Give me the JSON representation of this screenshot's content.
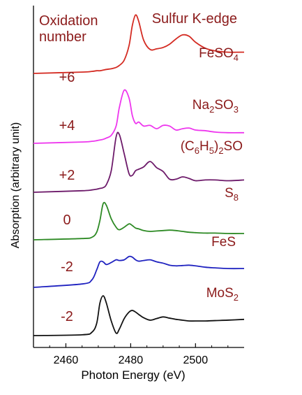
{
  "chart_data": {
    "type": "line",
    "title": "Sulfur K-edge",
    "xlabel": "Photon Energy (eV)",
    "ylabel": "Absorption (arbitrary unit)",
    "xlim": [
      2450,
      2515
    ],
    "x_ticks": [
      2460,
      2480,
      2500
    ],
    "oxidation_header": [
      "Oxidation",
      "number"
    ],
    "y_ticks": "none",
    "grid": false,
    "legend": "inline labels at right of each trace",
    "x_values": [
      2450,
      2465,
      2468,
      2469.5,
      2470.5,
      2471.5,
      2472.5,
      2474,
      2475.5,
      2476.5,
      2478,
      2479.5,
      2480.5,
      2481.5,
      2482.5,
      2484,
      2486,
      2488,
      2490,
      2492,
      2494,
      2496,
      2498,
      2500,
      2503,
      2506,
      2510,
      2515
    ],
    "series": [
      {
        "name": "FeSO4",
        "name_base": "FeSO",
        "name_sub": "4",
        "oxidation": "+6",
        "color": "#d42b22",
        "values": [
          0.0,
          0.02,
          0.03,
          0.04,
          0.04,
          0.05,
          0.06,
          0.07,
          0.09,
          0.12,
          0.2,
          0.42,
          0.72,
          0.88,
          0.78,
          0.5,
          0.36,
          0.37,
          0.39,
          0.44,
          0.52,
          0.58,
          0.56,
          0.47,
          0.38,
          0.34,
          0.32,
          0.32
        ]
      },
      {
        "name": "Na2SO3",
        "name_base": "Na",
        "name_sub": "2",
        "name_mid": "SO",
        "name_sub2": "3",
        "oxidation": "+4",
        "color": "#ee36ee",
        "values": [
          0.0,
          0.02,
          0.03,
          0.04,
          0.05,
          0.06,
          0.08,
          0.12,
          0.26,
          0.54,
          0.8,
          0.68,
          0.42,
          0.3,
          0.32,
          0.26,
          0.27,
          0.22,
          0.27,
          0.26,
          0.2,
          0.22,
          0.23,
          0.2,
          0.19,
          0.17,
          0.16,
          0.16
        ]
      },
      {
        "name": "(C6H5)2SO",
        "name_base": "(C",
        "name_sub": "6",
        "name_mid": "H",
        "name_sub2": "5",
        "name_tail": ")",
        "name_sub3": "2",
        "name_end": "SO",
        "oxidation": "+2",
        "color": "#6d1a6a",
        "values": [
          0.0,
          0.02,
          0.03,
          0.04,
          0.05,
          0.06,
          0.1,
          0.28,
          0.72,
          0.75,
          0.5,
          0.24,
          0.22,
          0.28,
          0.3,
          0.33,
          0.4,
          0.32,
          0.27,
          0.17,
          0.17,
          0.2,
          0.18,
          0.15,
          0.16,
          0.16,
          0.15,
          0.16
        ]
      },
      {
        "name": "S8",
        "name_base": "S",
        "name_sub": "8",
        "oxidation": "0",
        "color": "#2d8a24",
        "values": [
          0.0,
          0.03,
          0.06,
          0.18,
          0.46,
          0.86,
          0.82,
          0.5,
          0.3,
          0.24,
          0.3,
          0.38,
          0.34,
          0.28,
          0.26,
          0.22,
          0.2,
          0.21,
          0.22,
          0.23,
          0.22,
          0.2,
          0.18,
          0.17,
          0.16,
          0.16,
          0.15,
          0.15
        ]
      },
      {
        "name": "FeS",
        "name_base": "FeS",
        "oxidation": "-2",
        "color": "#1f22c0",
        "values": [
          0.0,
          0.1,
          0.22,
          0.52,
          0.76,
          0.76,
          0.68,
          0.74,
          0.82,
          0.8,
          0.82,
          0.92,
          0.9,
          0.82,
          0.78,
          0.8,
          0.82,
          0.76,
          0.72,
          0.66,
          0.64,
          0.65,
          0.66,
          0.64,
          0.6,
          0.58,
          0.56,
          0.56
        ]
      },
      {
        "name": "MoS2",
        "name_base": "MoS",
        "name_sub": "2",
        "oxidation": "-2",
        "color": "#111111",
        "values": [
          0.0,
          0.02,
          0.08,
          0.3,
          0.8,
          0.98,
          0.8,
          0.36,
          0.06,
          0.16,
          0.42,
          0.58,
          0.62,
          0.58,
          0.52,
          0.44,
          0.38,
          0.42,
          0.46,
          0.43,
          0.4,
          0.38,
          0.36,
          0.36,
          0.36,
          0.37,
          0.38,
          0.4
        ]
      }
    ]
  }
}
